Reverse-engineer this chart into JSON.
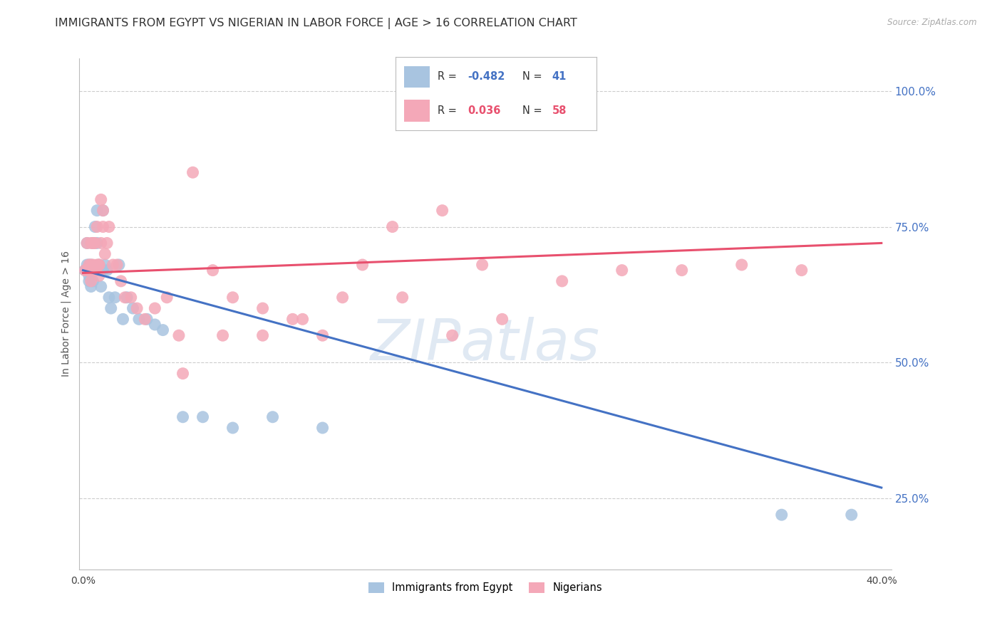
{
  "title": "IMMIGRANTS FROM EGYPT VS NIGERIAN IN LABOR FORCE | AGE > 16 CORRELATION CHART",
  "source": "Source: ZipAtlas.com",
  "ylabel": "In Labor Force | Age > 16",
  "xlim": [
    -0.002,
    0.405
  ],
  "ylim": [
    0.12,
    1.06
  ],
  "x_tick_positions": [
    0.0,
    0.1,
    0.2,
    0.3,
    0.4
  ],
  "x_tick_labels": [
    "0.0%",
    "",
    "",
    "",
    "40.0%"
  ],
  "y_ticks_right": [
    0.25,
    0.5,
    0.75,
    1.0
  ],
  "y_tick_labels_right": [
    "25.0%",
    "50.0%",
    "75.0%",
    "100.0%"
  ],
  "color_egypt": "#a8c4e0",
  "color_nigeria": "#f4a8b8",
  "color_egypt_line": "#4472c4",
  "color_nigeria_line": "#e8506e",
  "watermark": "ZIPatlas",
  "watermark_color": "#c8d8ea",
  "legend_R_egypt": "R = -0.482",
  "legend_R_nigeria": "R =  0.036",
  "legend_N_egypt": "N = 41",
  "legend_N_nigeria": "N = 58",
  "legend_label_egypt": "Immigrants from Egypt",
  "legend_label_nigeria": "Nigerians",
  "grid_color": "#cccccc",
  "background_color": "#ffffff",
  "egypt_x": [
    0.001,
    0.002,
    0.002,
    0.003,
    0.003,
    0.003,
    0.004,
    0.004,
    0.005,
    0.005,
    0.005,
    0.006,
    0.006,
    0.007,
    0.007,
    0.008,
    0.008,
    0.009,
    0.009,
    0.01,
    0.01,
    0.011,
    0.012,
    0.013,
    0.014,
    0.016,
    0.018,
    0.02,
    0.022,
    0.025,
    0.028,
    0.032,
    0.036,
    0.04,
    0.05,
    0.06,
    0.075,
    0.095,
    0.12,
    0.35,
    0.385
  ],
  "egypt_y": [
    0.67,
    0.68,
    0.72,
    0.68,
    0.66,
    0.65,
    0.68,
    0.64,
    0.67,
    0.65,
    0.72,
    0.67,
    0.75,
    0.78,
    0.72,
    0.67,
    0.68,
    0.67,
    0.64,
    0.78,
    0.67,
    0.68,
    0.67,
    0.62,
    0.6,
    0.62,
    0.68,
    0.58,
    0.62,
    0.6,
    0.58,
    0.58,
    0.57,
    0.56,
    0.4,
    0.4,
    0.38,
    0.4,
    0.38,
    0.22,
    0.22
  ],
  "nigeria_x": [
    0.001,
    0.002,
    0.002,
    0.003,
    0.003,
    0.004,
    0.004,
    0.004,
    0.005,
    0.005,
    0.005,
    0.006,
    0.006,
    0.007,
    0.007,
    0.008,
    0.008,
    0.008,
    0.009,
    0.009,
    0.01,
    0.01,
    0.011,
    0.012,
    0.013,
    0.015,
    0.017,
    0.019,
    0.021,
    0.024,
    0.027,
    0.031,
    0.036,
    0.042,
    0.048,
    0.055,
    0.065,
    0.075,
    0.09,
    0.105,
    0.12,
    0.14,
    0.16,
    0.185,
    0.21,
    0.24,
    0.27,
    0.3,
    0.33,
    0.36,
    0.05,
    0.07,
    0.09,
    0.11,
    0.13,
    0.155,
    0.18,
    0.2
  ],
  "nigeria_y": [
    0.67,
    0.67,
    0.72,
    0.68,
    0.67,
    0.72,
    0.68,
    0.65,
    0.67,
    0.72,
    0.68,
    0.67,
    0.72,
    0.68,
    0.75,
    0.68,
    0.68,
    0.66,
    0.72,
    0.8,
    0.75,
    0.78,
    0.7,
    0.72,
    0.75,
    0.68,
    0.68,
    0.65,
    0.62,
    0.62,
    0.6,
    0.58,
    0.6,
    0.62,
    0.55,
    0.85,
    0.67,
    0.62,
    0.55,
    0.58,
    0.55,
    0.68,
    0.62,
    0.55,
    0.58,
    0.65,
    0.67,
    0.67,
    0.68,
    0.67,
    0.48,
    0.55,
    0.6,
    0.58,
    0.62,
    0.75,
    0.78,
    0.68
  ]
}
